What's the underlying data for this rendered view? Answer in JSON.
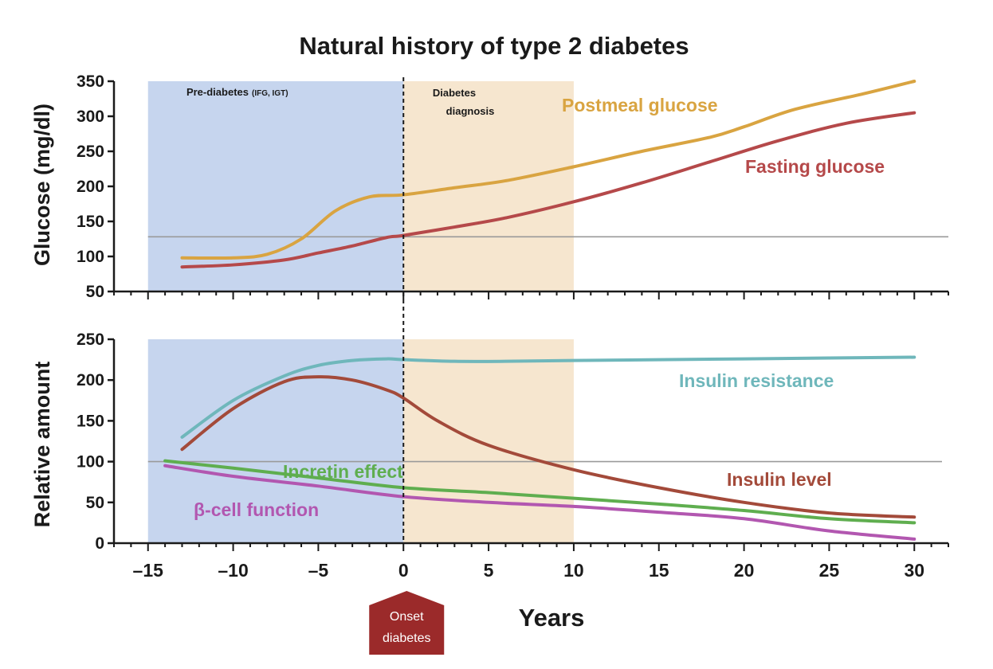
{
  "chart_data": [
    {
      "id": "glucose",
      "type": "line",
      "title": "Natural history of type 2 diabetes",
      "ylabel": "Glucose (mg/dl)",
      "xlim": [
        -17,
        32
      ],
      "ylim": [
        50,
        350
      ],
      "yticks": [
        50,
        100,
        150,
        200,
        250,
        300,
        350
      ],
      "reference_line": 128,
      "regions": [
        {
          "label": "Pre-diabetes",
          "sublabel": "(IFG, IGT)",
          "from": -15,
          "to": 0,
          "color": "#c6d5ee"
        },
        {
          "label": "Diabetes",
          "label2": "diagnosis",
          "from": 0,
          "to": 10,
          "color": "#f6e6cf"
        }
      ],
      "series": [
        {
          "name": "Postmeal glucose",
          "color": "#d9a441",
          "x": [
            -13,
            -10,
            -8,
            -6,
            -4,
            -2,
            0,
            3,
            6,
            10,
            14,
            18,
            20,
            23,
            27,
            30
          ],
          "y": [
            98,
            98,
            103,
            125,
            165,
            185,
            188,
            198,
            208,
            228,
            250,
            270,
            285,
            310,
            332,
            350
          ]
        },
        {
          "name": "Fasting glucose",
          "color": "#b5494a",
          "x": [
            -13,
            -10,
            -7,
            -5,
            -3,
            -1,
            0,
            3,
            6,
            10,
            14,
            18,
            22,
            26,
            30
          ],
          "y": [
            85,
            88,
            95,
            105,
            115,
            127,
            130,
            142,
            155,
            178,
            205,
            235,
            265,
            290,
            305
          ]
        }
      ]
    },
    {
      "id": "relative",
      "type": "line",
      "ylabel": "Relative amount",
      "xlabel": "Years",
      "xlim": [
        -17,
        32
      ],
      "ylim": [
        0,
        250
      ],
      "yticks": [
        0,
        50,
        100,
        150,
        200,
        250
      ],
      "xticks": [
        -15,
        -10,
        -5,
        0,
        5,
        10,
        15,
        20,
        25,
        30
      ],
      "xtick_labels": [
        "–15",
        "–10",
        "–5",
        "0",
        "5",
        "10",
        "15",
        "20",
        "25",
        "30"
      ],
      "reference_line": 100,
      "marker": {
        "x": 0,
        "label": "Onset",
        "label2": "diabetes",
        "color": "#9b2a2a"
      },
      "series": [
        {
          "name": "Insulin resistance",
          "color": "#6fb7bb",
          "x": [
            -13,
            -10,
            -7,
            -5,
            -3,
            -1,
            0,
            3,
            6,
            10,
            15,
            20,
            25,
            30
          ],
          "y": [
            130,
            175,
            205,
            218,
            224,
            226,
            225,
            223,
            223,
            224,
            225,
            226,
            227,
            228
          ]
        },
        {
          "name": "Insulin level",
          "color": "#a34a3a",
          "x": [
            -13,
            -10,
            -7,
            -5,
            -3,
            -1,
            0,
            2,
            5,
            10,
            15,
            20,
            25,
            30
          ],
          "y": [
            115,
            165,
            198,
            204,
            200,
            188,
            178,
            150,
            120,
            90,
            68,
            50,
            37,
            32
          ]
        },
        {
          "name": "Incretin effect",
          "color": "#5fae4f",
          "x": [
            -14,
            -10,
            -5,
            0,
            5,
            10,
            15,
            20,
            25,
            30
          ],
          "y": [
            101,
            92,
            80,
            68,
            62,
            55,
            48,
            40,
            30,
            25
          ]
        },
        {
          "name": "β-cell function",
          "color": "#b257b0",
          "x": [
            -14,
            -10,
            -5,
            0,
            5,
            10,
            15,
            20,
            25,
            30
          ],
          "y": [
            95,
            82,
            70,
            57,
            50,
            45,
            38,
            30,
            15,
            5
          ]
        }
      ]
    }
  ]
}
